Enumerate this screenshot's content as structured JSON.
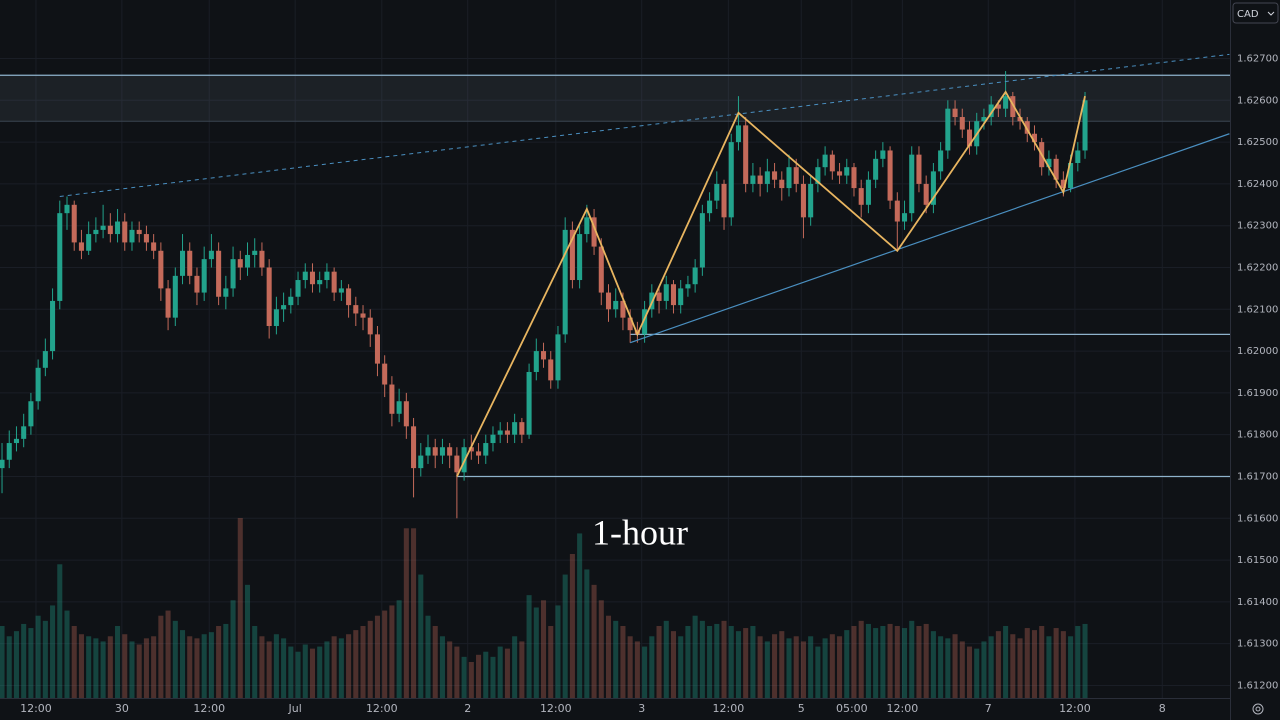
{
  "chart_data": {
    "type": "candlestick",
    "annotation": "1-hour",
    "currency": "CAD",
    "colors": {
      "up": "#22a38c",
      "down": "#c46a5a",
      "zigzag": "#e8b560",
      "line": "#4a8fc0",
      "level": "#8fb3cc"
    },
    "xlim": [
      -0.28,
      170.08
    ],
    "ylim": [
      1.6117,
      1.6284
    ],
    "yticks": [
      {
        "value": 1.627,
        "label": "1.62700"
      },
      {
        "value": 1.626,
        "label": "1.62600"
      },
      {
        "value": 1.625,
        "label": "1.62500"
      },
      {
        "value": 1.624,
        "label": "1.62400"
      },
      {
        "value": 1.623,
        "label": "1.62300"
      },
      {
        "value": 1.622,
        "label": "1.62200"
      },
      {
        "value": 1.621,
        "label": "1.62100"
      },
      {
        "value": 1.62,
        "label": "1.62000"
      },
      {
        "value": 1.619,
        "label": "1.61900"
      },
      {
        "value": 1.618,
        "label": "1.61800"
      },
      {
        "value": 1.617,
        "label": "1.61700"
      },
      {
        "value": 1.616,
        "label": "1.61600"
      },
      {
        "value": 1.615,
        "label": "1.61500"
      },
      {
        "value": 1.614,
        "label": "1.61400"
      },
      {
        "value": 1.613,
        "label": "1.61300"
      },
      {
        "value": 1.612,
        "label": "1.61200"
      }
    ],
    "xticks": [
      {
        "value": 4.7,
        "label": "12:00"
      },
      {
        "value": 16.6,
        "label": "30"
      },
      {
        "value": 28.7,
        "label": "12:00"
      },
      {
        "value": 40.6,
        "label": "Jul"
      },
      {
        "value": 52.6,
        "label": "12:00"
      },
      {
        "value": 64.5,
        "label": "2"
      },
      {
        "value": 76.7,
        "label": "12:00"
      },
      {
        "value": 88.6,
        "label": "3"
      },
      {
        "value": 100.6,
        "label": "12:00"
      },
      {
        "value": 110.7,
        "label": "5"
      },
      {
        "value": 117.7,
        "label": "05:00"
      },
      {
        "value": 124.7,
        "label": "12:00"
      },
      {
        "value": 136.6,
        "label": "7"
      },
      {
        "value": 148.6,
        "label": "12:00"
      },
      {
        "value": 160.7,
        "label": "8"
      }
    ],
    "candles": [
      [
        1.6172,
        1.6178,
        1.6166,
        1.6174
      ],
      [
        1.6174,
        1.6181,
        1.6172,
        1.6178
      ],
      [
        1.6178,
        1.6182,
        1.6176,
        1.6179
      ],
      [
        1.6179,
        1.6185,
        1.6177,
        1.6182
      ],
      [
        1.6182,
        1.619,
        1.618,
        1.6188
      ],
      [
        1.6188,
        1.6198,
        1.6186,
        1.6196
      ],
      [
        1.6196,
        1.6203,
        1.6194,
        1.62
      ],
      [
        1.62,
        1.6215,
        1.6198,
        1.6212
      ],
      [
        1.6212,
        1.6236,
        1.621,
        1.6233
      ],
      [
        1.6233,
        1.6237,
        1.6229,
        1.6235
      ],
      [
        1.6235,
        1.6236,
        1.6224,
        1.6226
      ],
      [
        1.6226,
        1.6229,
        1.6222,
        1.6224
      ],
      [
        1.6224,
        1.6231,
        1.6223,
        1.6228
      ],
      [
        1.6228,
        1.6232,
        1.6226,
        1.6229
      ],
      [
        1.6229,
        1.6235,
        1.6227,
        1.623
      ],
      [
        1.623,
        1.6233,
        1.6226,
        1.6228
      ],
      [
        1.6228,
        1.6234,
        1.6226,
        1.6231
      ],
      [
        1.6231,
        1.6233,
        1.6224,
        1.6226
      ],
      [
        1.6226,
        1.6231,
        1.6224,
        1.6229
      ],
      [
        1.6229,
        1.6231,
        1.6226,
        1.6228
      ],
      [
        1.6228,
        1.623,
        1.6224,
        1.6226
      ],
      [
        1.6226,
        1.6228,
        1.6222,
        1.6224
      ],
      [
        1.6224,
        1.6226,
        1.6212,
        1.6215
      ],
      [
        1.6215,
        1.6217,
        1.6205,
        1.6208
      ],
      [
        1.6208,
        1.622,
        1.6206,
        1.6218
      ],
      [
        1.6218,
        1.6228,
        1.6216,
        1.6224
      ],
      [
        1.6224,
        1.6226,
        1.6216,
        1.6218
      ],
      [
        1.6218,
        1.622,
        1.6211,
        1.6214
      ],
      [
        1.6214,
        1.6225,
        1.6212,
        1.6222
      ],
      [
        1.6222,
        1.6228,
        1.622,
        1.6224
      ],
      [
        1.6224,
        1.6226,
        1.6211,
        1.6213
      ],
      [
        1.6213,
        1.6218,
        1.621,
        1.6215
      ],
      [
        1.6215,
        1.6225,
        1.6213,
        1.6222
      ],
      [
        1.6222,
        1.6224,
        1.6217,
        1.622
      ],
      [
        1.622,
        1.6226,
        1.6218,
        1.6223
      ],
      [
        1.6223,
        1.6227,
        1.622,
        1.6224
      ],
      [
        1.6224,
        1.6226,
        1.6218,
        1.622
      ],
      [
        1.622,
        1.6222,
        1.6203,
        1.6206
      ],
      [
        1.6206,
        1.6213,
        1.6204,
        1.621
      ],
      [
        1.621,
        1.6214,
        1.6207,
        1.6211
      ],
      [
        1.6211,
        1.6215,
        1.6209,
        1.6213
      ],
      [
        1.6213,
        1.6219,
        1.6211,
        1.6217
      ],
      [
        1.6217,
        1.6221,
        1.6215,
        1.6219
      ],
      [
        1.6219,
        1.6221,
        1.6214,
        1.6216
      ],
      [
        1.6216,
        1.6219,
        1.6214,
        1.6217
      ],
      [
        1.6217,
        1.6221,
        1.6215,
        1.6219
      ],
      [
        1.6219,
        1.622,
        1.6212,
        1.6214
      ],
      [
        1.6214,
        1.6217,
        1.6212,
        1.6215
      ],
      [
        1.6215,
        1.6216,
        1.6208,
        1.6211
      ],
      [
        1.6211,
        1.6213,
        1.6206,
        1.6209
      ],
      [
        1.6209,
        1.6211,
        1.6205,
        1.6208
      ],
      [
        1.6208,
        1.621,
        1.6201,
        1.6204
      ],
      [
        1.6204,
        1.6206,
        1.6194,
        1.6197
      ],
      [
        1.6197,
        1.6199,
        1.6189,
        1.6192
      ],
      [
        1.6192,
        1.6194,
        1.6182,
        1.6185
      ],
      [
        1.6185,
        1.6191,
        1.6183,
        1.6188
      ],
      [
        1.6188,
        1.619,
        1.6179,
        1.6182
      ],
      [
        1.6182,
        1.6184,
        1.6165,
        1.6172
      ],
      [
        1.6172,
        1.6178,
        1.617,
        1.6175
      ],
      [
        1.6175,
        1.618,
        1.6173,
        1.6177
      ],
      [
        1.6177,
        1.6179,
        1.6172,
        1.6175
      ],
      [
        1.6175,
        1.6179,
        1.6173,
        1.6177
      ],
      [
        1.6177,
        1.6178,
        1.6172,
        1.6175
      ],
      [
        1.6175,
        1.6177,
        1.616,
        1.6171
      ],
      [
        1.6171,
        1.6179,
        1.6169,
        1.6177
      ],
      [
        1.6177,
        1.618,
        1.6174,
        1.6176
      ],
      [
        1.6176,
        1.6178,
        1.6173,
        1.6175
      ],
      [
        1.6175,
        1.618,
        1.6173,
        1.6178
      ],
      [
        1.6178,
        1.6182,
        1.6176,
        1.618
      ],
      [
        1.618,
        1.6183,
        1.6178,
        1.6181
      ],
      [
        1.6181,
        1.6183,
        1.6178,
        1.618
      ],
      [
        1.618,
        1.6185,
        1.6178,
        1.6183
      ],
      [
        1.6183,
        1.6184,
        1.6178,
        1.618
      ],
      [
        1.618,
        1.6197,
        1.6179,
        1.6195
      ],
      [
        1.6195,
        1.6203,
        1.6193,
        1.62
      ],
      [
        1.62,
        1.6202,
        1.6196,
        1.6198
      ],
      [
        1.6198,
        1.62,
        1.6191,
        1.6193
      ],
      [
        1.6193,
        1.6206,
        1.6191,
        1.6204
      ],
      [
        1.6204,
        1.6232,
        1.6202,
        1.6229
      ],
      [
        1.6229,
        1.6231,
        1.6215,
        1.6217
      ],
      [
        1.6217,
        1.623,
        1.6215,
        1.6228
      ],
      [
        1.6228,
        1.6235,
        1.6226,
        1.6232
      ],
      [
        1.6232,
        1.6234,
        1.6223,
        1.6225
      ],
      [
        1.6225,
        1.6227,
        1.6211,
        1.6214
      ],
      [
        1.6214,
        1.6216,
        1.6207,
        1.621
      ],
      [
        1.621,
        1.6215,
        1.6208,
        1.6212
      ],
      [
        1.6212,
        1.6214,
        1.6205,
        1.6208
      ],
      [
        1.6208,
        1.621,
        1.6202,
        1.6205
      ],
      [
        1.6205,
        1.6207,
        1.6202,
        1.6204
      ],
      [
        1.6204,
        1.6212,
        1.6202,
        1.621
      ],
      [
        1.621,
        1.6216,
        1.6208,
        1.6214
      ],
      [
        1.6214,
        1.6215,
        1.6209,
        1.6212
      ],
      [
        1.6212,
        1.6218,
        1.621,
        1.6216
      ],
      [
        1.6216,
        1.6217,
        1.6209,
        1.6211
      ],
      [
        1.6211,
        1.6217,
        1.6209,
        1.6215
      ],
      [
        1.6215,
        1.6218,
        1.6213,
        1.6216
      ],
      [
        1.6216,
        1.6222,
        1.6214,
        1.622
      ],
      [
        1.622,
        1.6235,
        1.6218,
        1.6233
      ],
      [
        1.6233,
        1.6238,
        1.6231,
        1.6236
      ],
      [
        1.6236,
        1.6243,
        1.6234,
        1.624
      ],
      [
        1.624,
        1.6241,
        1.6229,
        1.6232
      ],
      [
        1.6232,
        1.6252,
        1.623,
        1.625
      ],
      [
        1.625,
        1.6261,
        1.6248,
        1.6254
      ],
      [
        1.6254,
        1.6256,
        1.6238,
        1.624
      ],
      [
        1.624,
        1.6245,
        1.6238,
        1.6242
      ],
      [
        1.6242,
        1.6244,
        1.6237,
        1.624
      ],
      [
        1.624,
        1.6246,
        1.6238,
        1.6243
      ],
      [
        1.6243,
        1.6245,
        1.6239,
        1.6241
      ],
      [
        1.6241,
        1.6243,
        1.6236,
        1.6239
      ],
      [
        1.6239,
        1.6247,
        1.6237,
        1.6244
      ],
      [
        1.6244,
        1.6246,
        1.6238,
        1.624
      ],
      [
        1.624,
        1.6242,
        1.6227,
        1.6232
      ],
      [
        1.6232,
        1.6242,
        1.623,
        1.624
      ],
      [
        1.624,
        1.6246,
        1.6238,
        1.6244
      ],
      [
        1.6244,
        1.6249,
        1.6242,
        1.6247
      ],
      [
        1.6247,
        1.6248,
        1.6241,
        1.6243
      ],
      [
        1.6243,
        1.6245,
        1.624,
        1.6242
      ],
      [
        1.6242,
        1.6246,
        1.624,
        1.6244
      ],
      [
        1.6244,
        1.6245,
        1.6237,
        1.6239
      ],
      [
        1.6239,
        1.6241,
        1.6232,
        1.6235
      ],
      [
        1.6235,
        1.6243,
        1.6233,
        1.6241
      ],
      [
        1.6241,
        1.6248,
        1.6239,
        1.6246
      ],
      [
        1.6246,
        1.625,
        1.6244,
        1.6248
      ],
      [
        1.6248,
        1.6249,
        1.6234,
        1.6236
      ],
      [
        1.6236,
        1.6238,
        1.6224,
        1.6231
      ],
      [
        1.6231,
        1.6236,
        1.6229,
        1.6233
      ],
      [
        1.6233,
        1.6249,
        1.6231,
        1.6247
      ],
      [
        1.6247,
        1.6249,
        1.6238,
        1.624
      ],
      [
        1.624,
        1.6242,
        1.6233,
        1.6235
      ],
      [
        1.6235,
        1.6245,
        1.6233,
        1.6243
      ],
      [
        1.6243,
        1.625,
        1.6241,
        1.6248
      ],
      [
        1.6248,
        1.626,
        1.6246,
        1.6258
      ],
      [
        1.6258,
        1.626,
        1.6254,
        1.6256
      ],
      [
        1.6256,
        1.6258,
        1.6251,
        1.6253
      ],
      [
        1.6253,
        1.6255,
        1.6247,
        1.6249
      ],
      [
        1.6249,
        1.6257,
        1.6247,
        1.6255
      ],
      [
        1.6255,
        1.6258,
        1.6253,
        1.6256
      ],
      [
        1.6256,
        1.6261,
        1.6254,
        1.6259
      ],
      [
        1.6259,
        1.626,
        1.6256,
        1.6258
      ],
      [
        1.6258,
        1.6267,
        1.6256,
        1.6261
      ],
      [
        1.6261,
        1.6262,
        1.6254,
        1.6256
      ],
      [
        1.6256,
        1.6258,
        1.6253,
        1.6255
      ],
      [
        1.6255,
        1.6256,
        1.625,
        1.6252
      ],
      [
        1.6252,
        1.6254,
        1.6248,
        1.625
      ],
      [
        1.625,
        1.6251,
        1.6242,
        1.6244
      ],
      [
        1.6244,
        1.6248,
        1.6242,
        1.6246
      ],
      [
        1.6246,
        1.6247,
        1.6239,
        1.6241
      ],
      [
        1.6241,
        1.6243,
        1.6237,
        1.6239
      ],
      [
        1.6239,
        1.6247,
        1.6238,
        1.6245
      ],
      [
        1.6245,
        1.625,
        1.6243,
        1.6248
      ],
      [
        1.6248,
        1.6262,
        1.6246,
        1.626
      ]
    ],
    "volume": [
      70,
      60,
      65,
      72,
      68,
      80,
      75,
      90,
      130,
      85,
      70,
      62,
      60,
      58,
      55,
      60,
      70,
      62,
      55,
      52,
      58,
      60,
      80,
      85,
      75,
      66,
      60,
      58,
      62,
      64,
      70,
      72,
      95,
      175,
      110,
      70,
      60,
      55,
      62,
      58,
      50,
      45,
      52,
      48,
      50,
      55,
      60,
      58,
      62,
      66,
      70,
      75,
      80,
      85,
      90,
      95,
      165,
      165,
      120,
      80,
      70,
      60,
      55,
      50,
      40,
      35,
      42,
      45,
      40,
      50,
      48,
      60,
      55,
      100,
      88,
      95,
      70,
      90,
      120,
      140,
      160,
      125,
      110,
      95,
      80,
      75,
      70,
      60,
      55,
      50,
      60,
      70,
      75,
      65,
      60,
      70,
      80,
      75,
      70,
      72,
      75,
      70,
      65,
      68,
      70,
      60,
      55,
      62,
      65,
      58,
      60,
      55,
      60,
      50,
      58,
      62,
      60,
      66,
      70,
      75,
      72,
      68,
      70,
      72,
      70,
      68,
      75,
      70,
      72,
      65,
      60,
      58,
      62,
      55,
      50,
      48,
      55,
      60,
      65,
      70,
      62,
      58,
      68,
      66,
      70,
      60,
      68,
      65,
      60,
      70,
      72
    ],
    "zone": [
      1.6255,
      1.6266
    ],
    "levels": [
      {
        "from": 63,
        "price": 1.617
      },
      {
        "from": 87,
        "price": 1.6204
      }
    ],
    "trendline": {
      "x": [
        87,
        170
      ],
      "y": [
        1.6202,
        1.6252
      ]
    },
    "channel_line": {
      "x": [
        8,
        170
      ],
      "y": [
        1.6237,
        1.6271
      ]
    },
    "zigzag": {
      "x": [
        63,
        81,
        88,
        102,
        124,
        139,
        147,
        150
      ],
      "y": [
        1.617,
        1.6234,
        1.6204,
        1.6257,
        1.6224,
        1.6262,
        1.6238,
        1.6261
      ]
    }
  }
}
